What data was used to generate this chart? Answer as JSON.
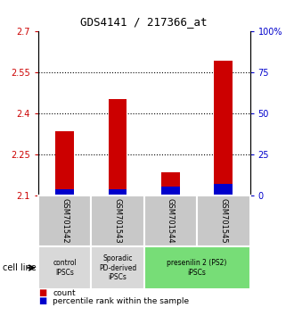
{
  "title": "GDS4141 / 217366_at",
  "samples": [
    "GSM701542",
    "GSM701543",
    "GSM701544",
    "GSM701545"
  ],
  "red_values": [
    2.335,
    2.455,
    2.185,
    2.595
  ],
  "blue_values": [
    2.125,
    2.125,
    2.135,
    2.145
  ],
  "ylim_left": [
    2.1,
    2.7
  ],
  "ylim_right": [
    0,
    100
  ],
  "yticks_left": [
    2.1,
    2.25,
    2.4,
    2.55,
    2.7
  ],
  "ytick_labels_left": [
    "2.1",
    "2.25",
    "2.4",
    "2.55",
    "2.7"
  ],
  "yticks_right": [
    0,
    25,
    50,
    75,
    100
  ],
  "ytick_labels_right": [
    "0",
    "25",
    "50",
    "75",
    "100%"
  ],
  "hlines": [
    2.25,
    2.4,
    2.55
  ],
  "bar_width": 0.35,
  "red_color": "#cc0000",
  "blue_color": "#0000cc",
  "left_tick_color": "#cc0000",
  "right_tick_color": "#0000cc",
  "group_labels": [
    {
      "text": "control\nIPSCs",
      "start": 0,
      "end": 0,
      "color": "#d8d8d8"
    },
    {
      "text": "Sporadic\nPD-derived\niPSCs",
      "start": 1,
      "end": 1,
      "color": "#d8d8d8"
    },
    {
      "text": "presenilin 2 (PS2)\niPSCs",
      "start": 2,
      "end": 3,
      "color": "#77dd77"
    }
  ],
  "cell_line_label": "cell line",
  "legend_items": [
    {
      "color": "#cc0000",
      "label": "count"
    },
    {
      "color": "#0000cc",
      "label": "percentile rank within the sample"
    }
  ],
  "base_value": 2.1,
  "sample_box_color": "#c8c8c8"
}
